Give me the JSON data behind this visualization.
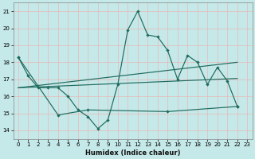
{
  "xlabel": "Humidex (Indice chaleur)",
  "bg_color": "#c5e8e8",
  "grid_color": "#e8b8b8",
  "line_color": "#1e6b5e",
  "ylim": [
    13.5,
    21.5
  ],
  "xlim": [
    -0.5,
    23.5
  ],
  "yticks": [
    14,
    15,
    16,
    17,
    18,
    19,
    20,
    21
  ],
  "xticks": [
    0,
    1,
    2,
    3,
    4,
    5,
    6,
    7,
    8,
    9,
    10,
    11,
    12,
    13,
    14,
    15,
    16,
    17,
    18,
    19,
    20,
    21,
    22,
    23
  ],
  "line_main_x": [
    0,
    1,
    2,
    3,
    4,
    5,
    6,
    7,
    8,
    9,
    10,
    11,
    12,
    13,
    14,
    15,
    16,
    17,
    18,
    19,
    20,
    21,
    22
  ],
  "line_main_y": [
    18.3,
    17.2,
    16.5,
    16.5,
    16.5,
    16.0,
    15.2,
    14.8,
    14.1,
    14.6,
    16.7,
    19.9,
    21.0,
    19.6,
    19.5,
    18.7,
    17.0,
    18.4,
    18.0,
    16.7,
    17.7,
    16.9,
    15.4
  ],
  "line_low_x": [
    0,
    4,
    7,
    15,
    22
  ],
  "line_low_y": [
    18.3,
    14.9,
    15.2,
    15.1,
    15.4
  ],
  "trend1_x": [
    0,
    22
  ],
  "trend1_y": [
    16.5,
    17.05
  ],
  "trend2_x": [
    0,
    22
  ],
  "trend2_y": [
    16.5,
    18.0
  ]
}
